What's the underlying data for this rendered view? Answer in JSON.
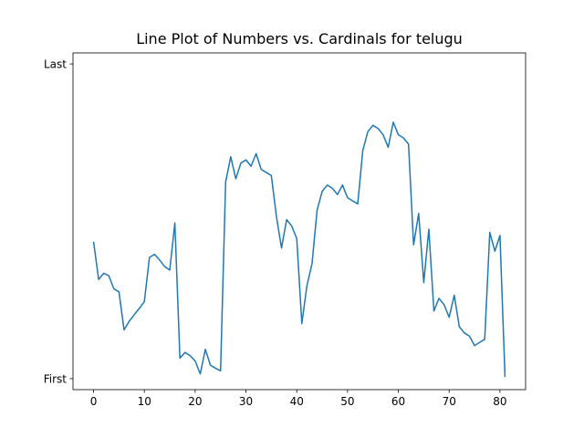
{
  "chart_data": {
    "type": "line",
    "title": "Line Plot of Numbers vs. Cardinals for telugu",
    "xlabel": "",
    "ylabel": "",
    "xlim": [
      -4.05,
      85.05
    ],
    "ylim": [
      -0.035,
      1.035
    ],
    "x_ticks": [
      0,
      10,
      20,
      30,
      40,
      50,
      60,
      70,
      80
    ],
    "x_tick_labels": [
      "0",
      "10",
      "20",
      "30",
      "40",
      "50",
      "60",
      "70",
      "80"
    ],
    "y_ticks": [
      0,
      1
    ],
    "y_tick_labels": [
      "First",
      "Last"
    ],
    "line_color": "#1f77b4",
    "series": [
      {
        "name": "telugu",
        "x": [
          0,
          1,
          2,
          3,
          4,
          5,
          6,
          7,
          8,
          9,
          10,
          11,
          12,
          13,
          14,
          15,
          16,
          17,
          18,
          19,
          20,
          21,
          22,
          23,
          24,
          25,
          26,
          27,
          28,
          29,
          30,
          31,
          32,
          33,
          34,
          35,
          36,
          37,
          38,
          39,
          40,
          41,
          42,
          43,
          44,
          45,
          46,
          47,
          48,
          49,
          50,
          51,
          52,
          53,
          54,
          55,
          56,
          57,
          58,
          59,
          60,
          61,
          62,
          63,
          64,
          65,
          66,
          67,
          68,
          69,
          70,
          71,
          72,
          73,
          74,
          75,
          76,
          77,
          78,
          79,
          80,
          81
        ],
        "values": [
          0.435,
          0.315,
          0.335,
          0.327,
          0.285,
          0.276,
          0.155,
          0.182,
          0.203,
          0.223,
          0.245,
          0.385,
          0.395,
          0.377,
          0.356,
          0.345,
          0.495,
          0.065,
          0.083,
          0.073,
          0.056,
          0.015,
          0.093,
          0.043,
          0.033,
          0.025,
          0.625,
          0.705,
          0.635,
          0.685,
          0.695,
          0.675,
          0.715,
          0.665,
          0.655,
          0.645,
          0.515,
          0.415,
          0.505,
          0.485,
          0.445,
          0.175,
          0.295,
          0.365,
          0.535,
          0.595,
          0.615,
          0.605,
          0.585,
          0.615,
          0.575,
          0.565,
          0.555,
          0.725,
          0.785,
          0.805,
          0.795,
          0.775,
          0.735,
          0.815,
          0.775,
          0.765,
          0.745,
          0.425,
          0.525,
          0.305,
          0.475,
          0.215,
          0.255,
          0.235,
          0.195,
          0.265,
          0.165,
          0.145,
          0.135,
          0.105,
          0.115,
          0.125,
          0.465,
          0.405,
          0.455,
          0.005
        ]
      }
    ]
  }
}
